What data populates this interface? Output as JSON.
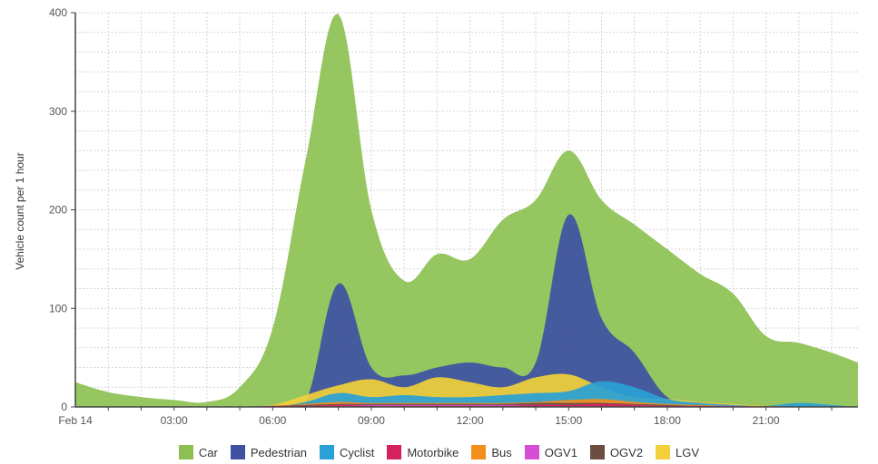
{
  "chart_data": {
    "type": "area",
    "stacked": false,
    "ylabel": "Vehicle count per 1 hour",
    "xlabel": "",
    "ylim": [
      0,
      400
    ],
    "xlim": [
      0,
      23.8
    ],
    "y_ticks": [
      0,
      100,
      200,
      300,
      400
    ],
    "x_ticks": [
      {
        "x": 0,
        "label": "Feb 14"
      },
      {
        "x": 3,
        "label": "03:00"
      },
      {
        "x": 6,
        "label": "06:00"
      },
      {
        "x": 9,
        "label": "09:00"
      },
      {
        "x": 12,
        "label": "12:00"
      },
      {
        "x": 15,
        "label": "15:00"
      },
      {
        "x": 18,
        "label": "18:00"
      },
      {
        "x": 21,
        "label": "21:00"
      }
    ],
    "grid": true,
    "legend_position": "bottom",
    "x": [
      0,
      1,
      2,
      3,
      4,
      5,
      6,
      7,
      8,
      9,
      10,
      11,
      12,
      13,
      14,
      15,
      16,
      17,
      18,
      19,
      20,
      21,
      22,
      23,
      23.8
    ],
    "series": [
      {
        "name": "Car",
        "color": "#8cc152",
        "values": [
          25,
          15,
          10,
          7,
          5,
          20,
          80,
          250,
          398,
          200,
          128,
          155,
          150,
          190,
          210,
          260,
          210,
          185,
          160,
          135,
          115,
          72,
          65,
          55,
          45
        ]
      },
      {
        "name": "Pedestrian",
        "color": "#3f51a3",
        "values": [
          0,
          0,
          0,
          0,
          0,
          0,
          0,
          5,
          125,
          40,
          32,
          40,
          45,
          40,
          45,
          195,
          90,
          55,
          10,
          5,
          2,
          0,
          0,
          0,
          0
        ]
      },
      {
        "name": "LGV",
        "color": "#f1d03a",
        "values": [
          0,
          0,
          0,
          0,
          0,
          0,
          2,
          12,
          22,
          28,
          20,
          30,
          25,
          20,
          30,
          33,
          20,
          10,
          8,
          5,
          3,
          1,
          1,
          0,
          0
        ]
      },
      {
        "name": "Cyclist",
        "color": "#29a1d6",
        "values": [
          0,
          0,
          0,
          0,
          0,
          0,
          0,
          5,
          14,
          10,
          12,
          10,
          10,
          12,
          14,
          16,
          26,
          20,
          8,
          4,
          2,
          1,
          4,
          2,
          0
        ]
      },
      {
        "name": "Bus",
        "color": "#f28e1c",
        "values": [
          0,
          0,
          0,
          0,
          0,
          0,
          1,
          3,
          5,
          4,
          4,
          4,
          4,
          4,
          5,
          7,
          8,
          5,
          3,
          2,
          1,
          1,
          0,
          0,
          0
        ]
      },
      {
        "name": "OGV2",
        "color": "#6d4c41",
        "values": [
          0,
          0,
          0,
          0,
          0,
          0,
          1,
          2,
          3,
          3,
          3,
          3,
          3,
          3,
          4,
          4,
          4,
          3,
          2,
          1,
          1,
          0,
          0,
          0,
          0
        ]
      },
      {
        "name": "OGV1",
        "color": "#d64ed6",
        "values": [
          0,
          0,
          0,
          0,
          0,
          0,
          1,
          1,
          2,
          2,
          2,
          2,
          2,
          2,
          2,
          2,
          2,
          2,
          1,
          1,
          1,
          0,
          0,
          0,
          0
        ]
      },
      {
        "name": "Motorbike",
        "color": "#d6225c",
        "values": [
          0,
          0,
          0,
          0,
          0,
          0,
          1,
          1,
          2,
          1,
          1,
          1,
          1,
          1,
          2,
          2,
          3,
          2,
          1,
          1,
          0,
          0,
          0,
          0,
          0
        ]
      }
    ],
    "legend_order": [
      "Car",
      "Pedestrian",
      "Cyclist",
      "Motorbike",
      "Bus",
      "OGV1",
      "OGV2",
      "LGV"
    ]
  }
}
